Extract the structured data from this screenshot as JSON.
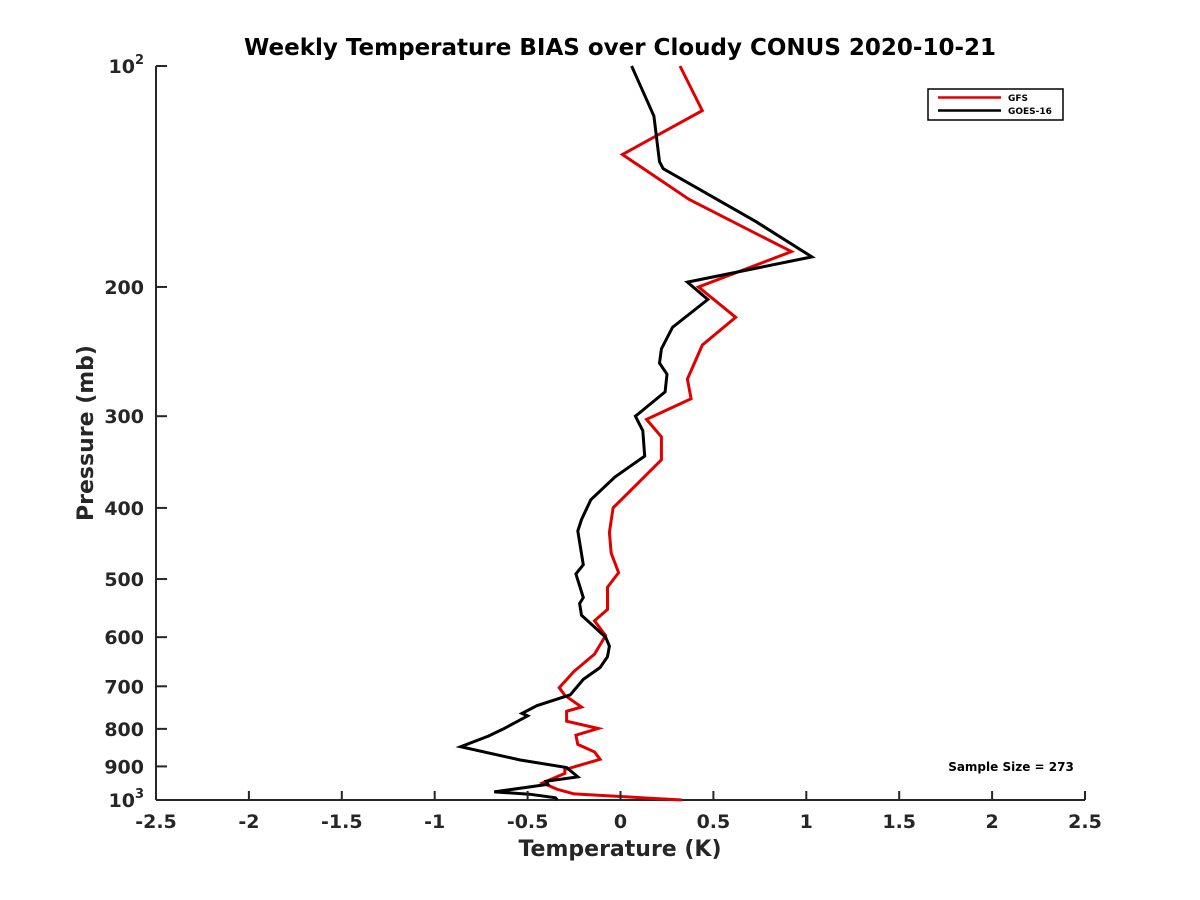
{
  "chart_data": {
    "type": "line",
    "title": "Weekly Temperature BIAS over Cloudy CONUS 2020-10-21",
    "xlabel": "Temperature (K)",
    "ylabel": "Pressure (mb)",
    "xlim": [
      -2.5,
      2.5
    ],
    "ylim": [
      100,
      1000
    ],
    "y_scale": "log",
    "y_reversed": true,
    "x_ticks": [
      "-2.5",
      "-2",
      "-1.5",
      "-1",
      "-0.5",
      "0",
      "0.5",
      "1",
      "1.5",
      "2",
      "2.5"
    ],
    "x_tick_values": [
      -2.5,
      -2,
      -1.5,
      -1,
      -0.5,
      0,
      0.5,
      1,
      1.5,
      2,
      2.5
    ],
    "y_ticks": [
      {
        "value": 100,
        "base": "10",
        "exp": "2"
      },
      {
        "value": 200,
        "label": "200"
      },
      {
        "value": 300,
        "label": "300"
      },
      {
        "value": 400,
        "label": "400"
      },
      {
        "value": 500,
        "label": "500"
      },
      {
        "value": 600,
        "label": "600"
      },
      {
        "value": 700,
        "label": "700"
      },
      {
        "value": 800,
        "label": "800"
      },
      {
        "value": 900,
        "label": "900"
      },
      {
        "value": 1000,
        "base": "10",
        "exp": "3"
      }
    ],
    "grid": false,
    "legend_position": "top-right",
    "annotation": "Sample Size = 273",
    "series": [
      {
        "name": "GFS",
        "color": "#e00000",
        "points": [
          [
            0.32,
            100
          ],
          [
            0.44,
            115
          ],
          [
            0.01,
            132
          ],
          [
            0.37,
            152
          ],
          [
            0.92,
            179
          ],
          [
            0.42,
            200
          ],
          [
            0.62,
            220
          ],
          [
            0.44,
            240
          ],
          [
            0.36,
            267
          ],
          [
            0.38,
            284
          ],
          [
            0.14,
            303
          ],
          [
            0.22,
            320
          ],
          [
            0.22,
            344
          ],
          [
            -0.04,
            400
          ],
          [
            -0.06,
            432
          ],
          [
            -0.05,
            461
          ],
          [
            -0.01,
            490
          ],
          [
            -0.07,
            513
          ],
          [
            -0.07,
            550
          ],
          [
            -0.14,
            570
          ],
          [
            -0.08,
            597
          ],
          [
            -0.14,
            633
          ],
          [
            -0.25,
            668
          ],
          [
            -0.33,
            703
          ],
          [
            -0.3,
            720
          ],
          [
            -0.21,
            747
          ],
          [
            -0.29,
            757
          ],
          [
            -0.29,
            781
          ],
          [
            -0.12,
            799
          ],
          [
            -0.24,
            816
          ],
          [
            -0.23,
            840
          ],
          [
            -0.14,
            860
          ],
          [
            -0.11,
            880
          ],
          [
            -0.3,
            909
          ],
          [
            -0.3,
            920
          ],
          [
            -0.42,
            948
          ],
          [
            -0.34,
            967
          ],
          [
            -0.25,
            981
          ],
          [
            0.33,
            1000
          ]
        ]
      },
      {
        "name": "GOES-16",
        "color": "#000000",
        "points": [
          [
            0.06,
            100
          ],
          [
            0.18,
            117
          ],
          [
            0.21,
            135
          ],
          [
            0.23,
            138
          ],
          [
            0.73,
            163
          ],
          [
            1.03,
            182
          ],
          [
            0.36,
            197
          ],
          [
            0.47,
            208
          ],
          [
            0.28,
            227
          ],
          [
            0.22,
            243
          ],
          [
            0.21,
            254
          ],
          [
            0.25,
            263
          ],
          [
            0.24,
            278
          ],
          [
            0.08,
            300
          ],
          [
            0.12,
            314
          ],
          [
            0.13,
            340
          ],
          [
            -0.03,
            363
          ],
          [
            -0.16,
            390
          ],
          [
            -0.21,
            415
          ],
          [
            -0.23,
            430
          ],
          [
            -0.2,
            478
          ],
          [
            -0.24,
            492
          ],
          [
            -0.2,
            530
          ],
          [
            -0.22,
            540
          ],
          [
            -0.21,
            560
          ],
          [
            -0.08,
            600
          ],
          [
            -0.06,
            617
          ],
          [
            -0.07,
            638
          ],
          [
            -0.11,
            660
          ],
          [
            -0.2,
            685
          ],
          [
            -0.27,
            719
          ],
          [
            -0.45,
            744
          ],
          [
            -0.53,
            762
          ],
          [
            -0.5,
            768
          ],
          [
            -0.63,
            800
          ],
          [
            -0.71,
            818
          ],
          [
            -0.86,
            846
          ],
          [
            -0.54,
            882
          ],
          [
            -0.29,
            903
          ],
          [
            -0.23,
            930
          ],
          [
            -0.4,
            943
          ],
          [
            -0.39,
            952
          ],
          [
            -0.68,
            975
          ],
          [
            -0.49,
            982
          ],
          [
            -0.35,
            993
          ],
          [
            -0.34,
            1000
          ]
        ]
      }
    ]
  }
}
